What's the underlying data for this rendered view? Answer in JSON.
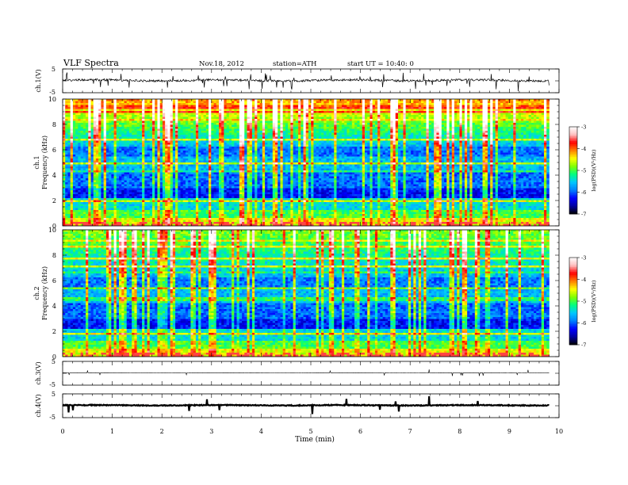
{
  "header": {
    "title": "VLF  Spectra",
    "date": "Nov.18, 2012",
    "station": "station=ATH",
    "start": "start  UT =   10:40: 0"
  },
  "colors": {
    "waveform": "#000000",
    "colormap": [
      "#000000",
      "#0000a0",
      "#0000ff",
      "#0080ff",
      "#00c8ff",
      "#00ff80",
      "#80ff00",
      "#ffff00",
      "#ff8000",
      "#ff0000",
      "#ffc0c0",
      "#ffffff"
    ]
  },
  "chart_data": [
    {
      "type": "line",
      "name": "waveform-ch1",
      "ylabel": "ch.1(V)",
      "ylim": [
        -5,
        5
      ],
      "yticks": [
        "5",
        "-5"
      ],
      "xlim": [
        0,
        10
      ],
      "description_values": {
        "baseline_V": 0,
        "duration_min": 9.8
      }
    },
    {
      "type": "heatmap",
      "name": "spectrogram-ch1",
      "ylabel": "ch.1",
      "ylabel2": "Frequency  (kHz)",
      "ylim": [
        0,
        10
      ],
      "yticks": [
        "0",
        "2",
        "4",
        "6",
        "8",
        "10"
      ],
      "xlim": [
        0,
        10
      ],
      "colorbar": {
        "label": "log(PSD)(V²/Hz)",
        "ticks": [
          "-3",
          "-4",
          "-5",
          "-6",
          "-7"
        ],
        "range": [
          -7,
          -3
        ]
      }
    },
    {
      "type": "heatmap",
      "name": "spectrogram-ch2",
      "ylabel": "ch.2",
      "ylabel2": "Frequency  (kHz)",
      "ylim": [
        0,
        10
      ],
      "yticks": [
        "0",
        "2",
        "4",
        "6",
        "8",
        "10"
      ],
      "xlim": [
        0,
        10
      ],
      "colorbar": {
        "label": "log(PSD)(V²/Hz)",
        "ticks": [
          "-3",
          "-4",
          "-5",
          "-6",
          "-7"
        ],
        "range": [
          -7,
          -3
        ]
      }
    },
    {
      "type": "line",
      "name": "waveform-ch3",
      "ylabel": "ch.3(V)",
      "ylim": [
        -5,
        5
      ],
      "yticks": [
        "5",
        "-5"
      ],
      "xlim": [
        0,
        10
      ],
      "description_values": {
        "baseline_V": 0
      }
    },
    {
      "type": "line",
      "name": "waveform-ch4",
      "ylabel": "ch.4(V)",
      "ylim": [
        -5,
        5
      ],
      "yticks": [
        "5",
        "-5"
      ],
      "xlim": [
        0,
        10
      ],
      "xlabel": "Time  (min)",
      "xticks": [
        "0",
        "1",
        "2",
        "3",
        "4",
        "5",
        "6",
        "7",
        "8",
        "9",
        "10"
      ],
      "description_values": {
        "baseline_V": 0
      }
    }
  ]
}
